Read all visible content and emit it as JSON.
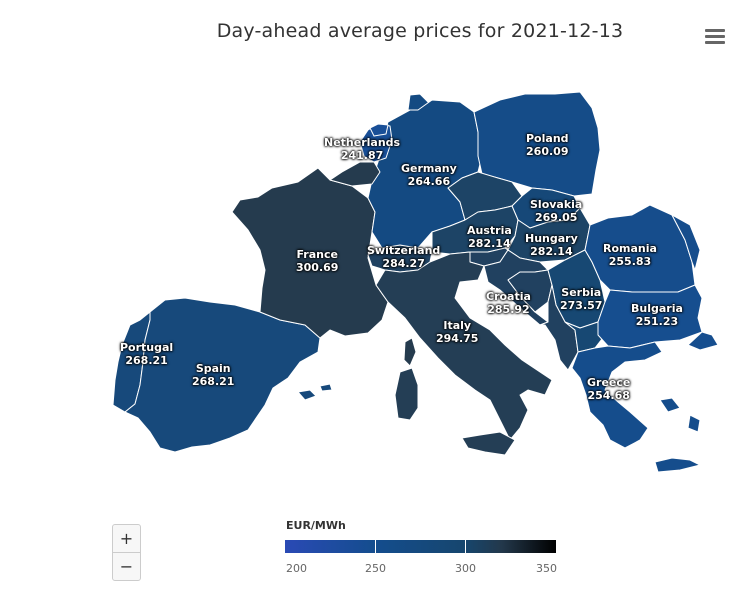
{
  "title": "Day-ahead average prices for 2021-12-13",
  "menu_icon": "hamburger-menu-icon",
  "colors": {
    "low": "#2a4ab5",
    "mid": "#144d8e",
    "high": "#23384b",
    "max": "#000000",
    "border": "#ffffff"
  },
  "countries": [
    {
      "name": "Netherlands",
      "value": "241.87",
      "color": "#194f97"
    },
    {
      "name": "Germany",
      "value": "264.66",
      "color": "#144a82"
    },
    {
      "name": "Poland",
      "value": "260.09",
      "color": "#154c88"
    },
    {
      "name": "Slovakia",
      "value": "269.05",
      "color": "#164878"
    },
    {
      "name": "Austria",
      "value": "282.14",
      "color": "#1d4466"
    },
    {
      "name": "Hungary",
      "value": "282.14",
      "color": "#1d4466"
    },
    {
      "name": "Romania",
      "value": "255.83",
      "color": "#164d8c"
    },
    {
      "name": "France",
      "value": "300.69",
      "color": "#253b4e"
    },
    {
      "name": "Switzerland",
      "value": "284.27",
      "color": "#204262"
    },
    {
      "name": "Croatia",
      "value": "285.92",
      "color": "#214160"
    },
    {
      "name": "Serbia",
      "value": "273.57",
      "color": "#174873"
    },
    {
      "name": "Bulgaria",
      "value": "251.23",
      "color": "#164e8f"
    },
    {
      "name": "Italy",
      "value": "294.75",
      "color": "#243e55"
    },
    {
      "name": "Portugal",
      "value": "268.21",
      "color": "#17497b"
    },
    {
      "name": "Spain",
      "value": "268.21",
      "color": "#17497b"
    },
    {
      "name": "Greece",
      "value": "254.68",
      "color": "#154d8c"
    }
  ],
  "zoom": {
    "in_label": "+",
    "out_label": "−"
  },
  "legend": {
    "title": "EUR/MWh",
    "ticks": [
      "200",
      "250",
      "300",
      "350"
    ]
  }
}
